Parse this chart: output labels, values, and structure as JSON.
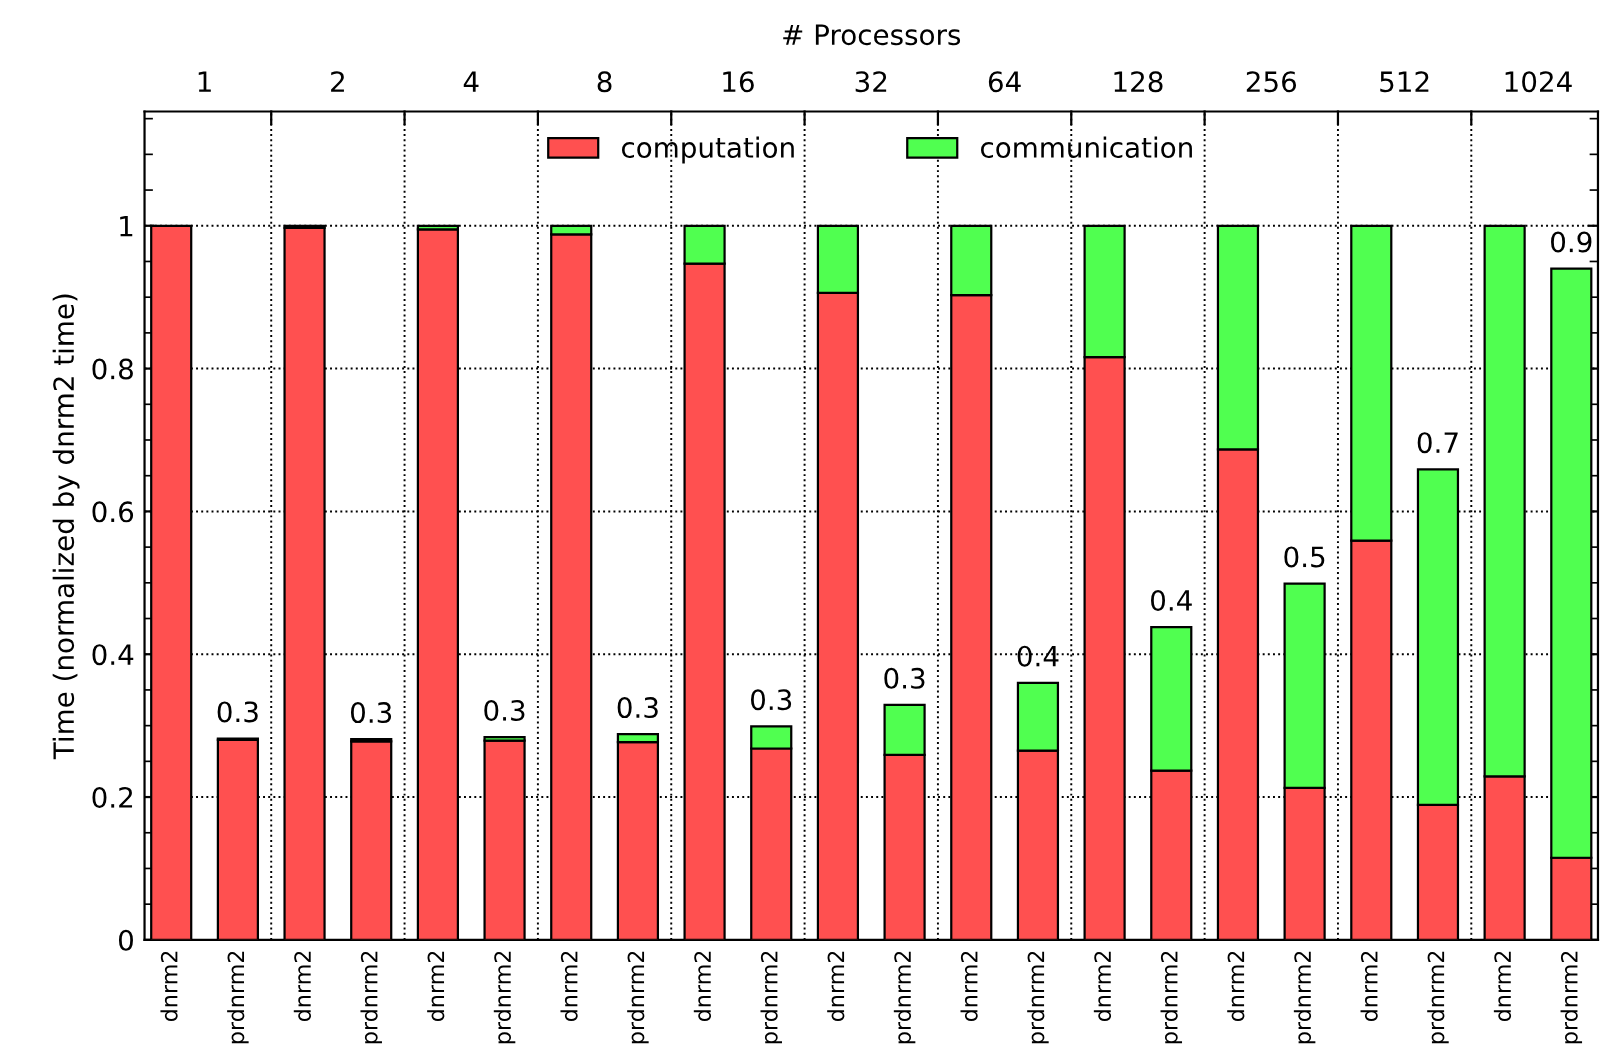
{
  "chart_data": {
    "type": "bar",
    "stacked": true,
    "ylabel": "Time (normalized by dnrm2 time)",
    "x2label": "# Processors",
    "categories": [
      "dnrm2",
      "prdnrm2",
      "dnrm2",
      "prdnrm2",
      "dnrm2",
      "prdnrm2",
      "dnrm2",
      "prdnrm2",
      "dnrm2",
      "prdnrm2",
      "dnrm2",
      "prdnrm2",
      "dnrm2",
      "prdnrm2",
      "dnrm2",
      "prdnrm2",
      "dnrm2",
      "prdnrm2",
      "dnrm2",
      "prdnrm2",
      "dnrm2",
      "prdnrm2"
    ],
    "series": [
      {
        "name": "computation",
        "color": "#ff5050",
        "values": [
          1.0,
          0.28,
          0.997,
          0.278,
          0.995,
          0.279,
          0.988,
          0.277,
          0.947,
          0.268,
          0.906,
          0.259,
          0.903,
          0.265,
          0.816,
          0.237,
          0.687,
          0.213,
          0.559,
          0.189,
          0.229,
          0.115
        ]
      },
      {
        "name": "communication",
        "color": "#50ff50",
        "values": [
          null,
          0.002,
          0.003,
          0.003,
          0.005,
          0.005,
          0.012,
          0.011,
          0.053,
          0.031,
          0.094,
          0.07,
          0.097,
          0.095,
          0.184,
          0.201,
          0.313,
          0.286,
          0.441,
          0.47,
          0.771,
          0.825
        ]
      }
    ],
    "totals": [
      null,
      "0.3",
      null,
      "0.3",
      null,
      "0.3",
      null,
      "0.3",
      null,
      "0.3",
      null,
      "0.3",
      null,
      "0.4",
      null,
      "0.4",
      null,
      "0.5",
      null,
      "0.7",
      null,
      "0.9"
    ],
    "ylim": [
      0,
      1.16
    ],
    "yticks": [
      0,
      {
        "value": 0.05,
        "label": null
      },
      {
        "value": 0.1,
        "label": null
      },
      {
        "value": 0.15,
        "label": null
      },
      0.2,
      {
        "value": 0.25,
        "label": null
      },
      {
        "value": 0.3,
        "label": null
      },
      {
        "value": 0.35,
        "label": null
      },
      0.4,
      {
        "value": 0.45,
        "label": null
      },
      {
        "value": 0.5,
        "label": null
      },
      {
        "value": 0.55,
        "label": null
      },
      0.6,
      {
        "value": 0.65,
        "label": null
      },
      {
        "value": 0.7,
        "label": null
      },
      {
        "value": 0.75,
        "label": null
      },
      0.8,
      {
        "value": 0.85,
        "label": null
      },
      {
        "value": 0.9,
        "label": null
      },
      {
        "value": 0.95,
        "label": null
      },
      1,
      {
        "value": 1.05,
        "label": null
      },
      {
        "value": 1.1,
        "label": null
      },
      {
        "value": 1.15,
        "label": null
      }
    ],
    "annotations": [
      "1",
      "2",
      "4",
      "8",
      "16",
      "32",
      "64",
      "128",
      "256",
      "512",
      "1024"
    ],
    "grid": true,
    "legend": "top"
  }
}
